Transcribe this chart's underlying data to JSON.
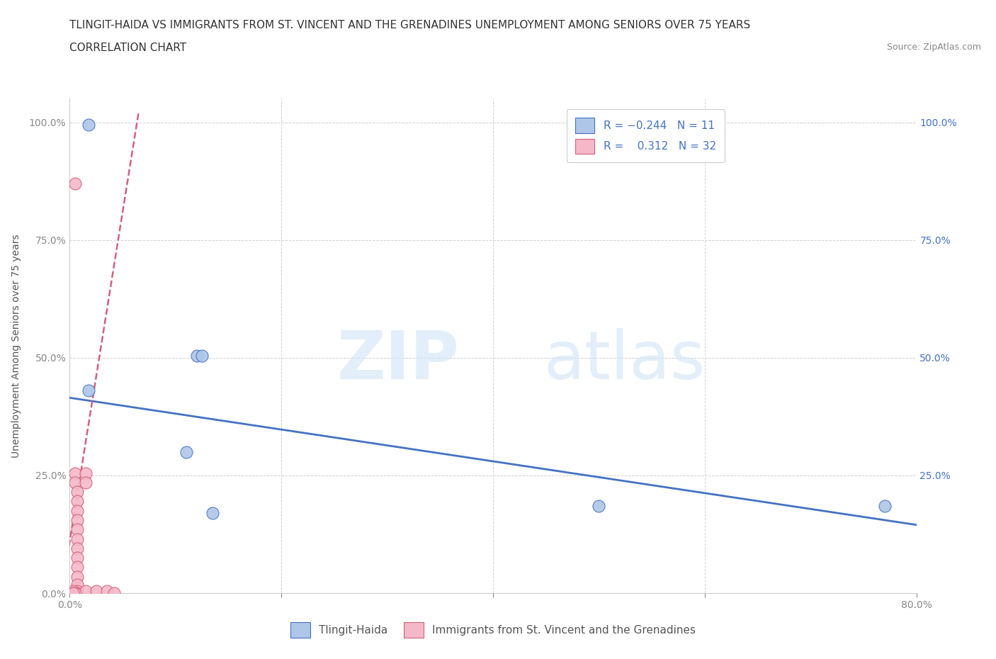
{
  "title_line1": "TLINGIT-HAIDA VS IMMIGRANTS FROM ST. VINCENT AND THE GRENADINES UNEMPLOYMENT AMONG SENIORS OVER 75 YEARS",
  "title_line2": "CORRELATION CHART",
  "source_text": "Source: ZipAtlas.com",
  "ylabel": "Unemployment Among Seniors over 75 years",
  "xlim": [
    0.0,
    0.8
  ],
  "ylim": [
    0.0,
    1.05
  ],
  "x_ticks": [
    0.0,
    0.2,
    0.4,
    0.6,
    0.8
  ],
  "x_tick_labels_bottom": [
    "0.0%",
    "",
    "",
    "",
    "80.0%"
  ],
  "y_ticks": [
    0.0,
    0.25,
    0.5,
    0.75,
    1.0
  ],
  "y_tick_labels_left": [
    "0.0%",
    "25.0%",
    "50.0%",
    "75.0%",
    "100.0%"
  ],
  "y_tick_labels_right": [
    "",
    "25.0%",
    "50.0%",
    "75.0%",
    "100.0%"
  ],
  "blue_color": "#aec6e8",
  "pink_color": "#f5b8c8",
  "blue_line_color": "#4472c4",
  "pink_line_color": "#d4607a",
  "blue_scatter": [
    [
      0.018,
      0.995
    ],
    [
      0.018,
      0.43
    ],
    [
      0.12,
      0.505
    ],
    [
      0.125,
      0.505
    ],
    [
      0.11,
      0.3
    ],
    [
      0.135,
      0.17
    ],
    [
      0.5,
      0.185
    ],
    [
      0.77,
      0.185
    ]
  ],
  "pink_scatter": [
    [
      0.005,
      0.87
    ],
    [
      0.005,
      0.255
    ],
    [
      0.005,
      0.235
    ],
    [
      0.007,
      0.215
    ],
    [
      0.007,
      0.195
    ],
    [
      0.007,
      0.175
    ],
    [
      0.007,
      0.155
    ],
    [
      0.007,
      0.135
    ],
    [
      0.007,
      0.115
    ],
    [
      0.007,
      0.095
    ],
    [
      0.007,
      0.075
    ],
    [
      0.007,
      0.055
    ],
    [
      0.007,
      0.035
    ],
    [
      0.007,
      0.018
    ],
    [
      0.007,
      0.005
    ],
    [
      0.007,
      0.0
    ],
    [
      0.015,
      0.255
    ],
    [
      0.015,
      0.235
    ],
    [
      0.015,
      0.005
    ],
    [
      0.025,
      0.005
    ],
    [
      0.035,
      0.005
    ],
    [
      0.003,
      0.005
    ],
    [
      0.003,
      0.0
    ],
    [
      0.003,
      0.0
    ],
    [
      0.042,
      0.0
    ],
    [
      0.005,
      0.0
    ],
    [
      0.003,
      0.0
    ]
  ],
  "blue_R": -0.244,
  "blue_N": 11,
  "pink_R": 0.312,
  "pink_N": 32,
  "blue_trend_x": [
    0.0,
    0.8
  ],
  "blue_trend_y": [
    0.415,
    0.145
  ],
  "pink_trend_x": [
    -0.005,
    0.065
  ],
  "pink_trend_y": [
    0.04,
    1.02
  ],
  "watermark_zip": "ZIP",
  "watermark_atlas": "atlas",
  "legend_label_blue": "Tlingit-Haida",
  "legend_label_pink": "Immigrants from St. Vincent and the Grenadines",
  "title_fontsize": 11,
  "axis_label_fontsize": 10,
  "tick_fontsize": 10,
  "legend_fontsize": 11,
  "background_color": "#ffffff",
  "grid_color": "#cccccc"
}
